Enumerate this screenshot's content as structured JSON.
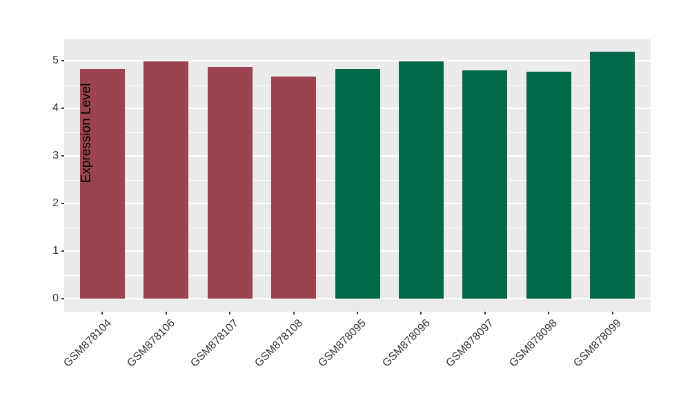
{
  "chart_data": {
    "type": "bar",
    "title": "",
    "xlabel": "",
    "ylabel": "Expression Level",
    "categories": [
      "GSM878104",
      "GSM878106",
      "GSM878107",
      "GSM878108",
      "GSM878095",
      "GSM878096",
      "GSM878097",
      "GSM878098",
      "GSM878099"
    ],
    "values": [
      4.83,
      4.99,
      4.87,
      4.66,
      4.83,
      4.98,
      4.8,
      4.77,
      5.19
    ],
    "bar_colors": [
      "#9B4351",
      "#9B4351",
      "#9B4351",
      "#9B4351",
      "#01684A",
      "#01684A",
      "#01684A",
      "#01684A",
      "#01684A"
    ],
    "ylim": [
      -0.27,
      5.45
    ],
    "yticks": [
      0,
      1,
      2,
      3,
      4,
      5
    ],
    "yticks_minor": [
      0.5,
      1.5,
      2.5,
      3.5,
      4.5
    ],
    "grid": "major and minor horizontal gridlines, white on gray panel",
    "legend": "none"
  },
  "style": {
    "panel_background": "#EBEBEB",
    "grid_color": "#FFFFFF",
    "axis_text_color": "#333333",
    "axis_title_color": "#000000",
    "group_a_color": "#9B4351",
    "group_b_color": "#01684A"
  }
}
